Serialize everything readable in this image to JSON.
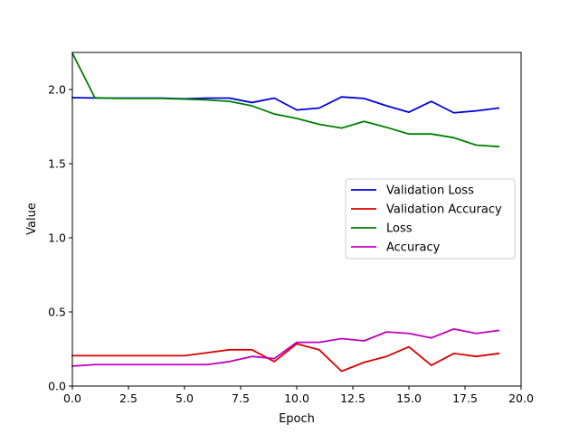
{
  "chart_data": {
    "type": "line",
    "xlabel": "Epoch",
    "ylabel": "Value",
    "xlim": [
      0,
      20
    ],
    "ylim": [
      0,
      2.25
    ],
    "xticks": [
      "0.0",
      "2.5",
      "5.0",
      "7.5",
      "10.0",
      "12.5",
      "15.0",
      "17.5",
      "20.0"
    ],
    "yticks": [
      "0.0",
      "0.5",
      "1.0",
      "1.5",
      "2.0"
    ],
    "grid": false,
    "legend_position": "center-right",
    "x": [
      0,
      1,
      2,
      3,
      4,
      5,
      6,
      7,
      8,
      9,
      10,
      11,
      12,
      13,
      14,
      15,
      16,
      17,
      18,
      19
    ],
    "series": [
      {
        "name": "Validation Loss",
        "color": "#0000dd",
        "values": [
          1.945,
          1.943,
          1.942,
          1.942,
          1.942,
          1.937,
          1.942,
          1.942,
          1.912,
          1.942,
          1.862,
          1.875,
          1.95,
          1.94,
          1.89,
          1.847,
          1.92,
          1.843,
          1.856,
          1.875
        ]
      },
      {
        "name": "Validation Accuracy",
        "color": "#dd0000",
        "values": [
          0.205,
          0.205,
          0.205,
          0.205,
          0.205,
          0.205,
          0.225,
          0.245,
          0.245,
          0.165,
          0.285,
          0.245,
          0.1,
          0.16,
          0.2,
          0.265,
          0.14,
          0.22,
          0.2,
          0.22
        ]
      },
      {
        "name": "Loss",
        "color": "#008000",
        "values": [
          2.245,
          1.945,
          1.94,
          1.94,
          1.94,
          1.935,
          1.93,
          1.92,
          1.89,
          1.835,
          1.805,
          1.765,
          1.74,
          1.785,
          1.745,
          1.7,
          1.7,
          1.675,
          1.625,
          1.615
        ]
      },
      {
        "name": "Accuracy",
        "color": "#bf00bf",
        "values": [
          0.135,
          0.145,
          0.145,
          0.145,
          0.145,
          0.145,
          0.145,
          0.165,
          0.2,
          0.185,
          0.295,
          0.295,
          0.32,
          0.305,
          0.365,
          0.355,
          0.325,
          0.385,
          0.355,
          0.375
        ]
      }
    ]
  }
}
